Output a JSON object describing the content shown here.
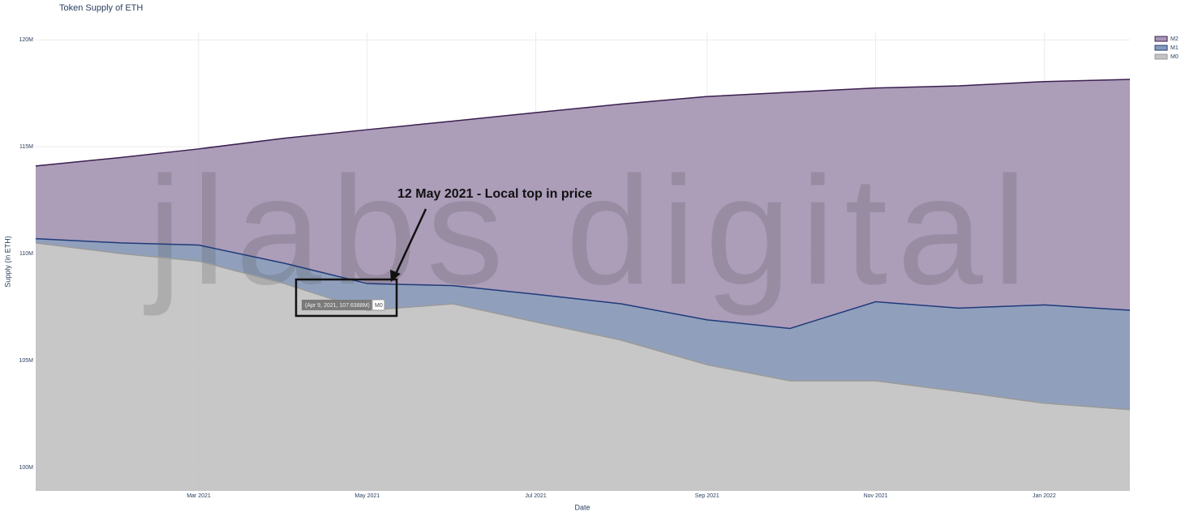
{
  "chart_data": {
    "type": "area",
    "title": "Token Supply of ETH",
    "x_label": "Date",
    "y_label": "Supply (in ETH)",
    "x": [
      "2021-01",
      "2021-02",
      "2021-03",
      "2021-04",
      "2021-05",
      "2021-06",
      "2021-07",
      "2021-08",
      "2021-09",
      "2021-10",
      "2021-11",
      "2021-12",
      "2022-01",
      "2022-02"
    ],
    "series": [
      {
        "name": "M2",
        "color": "#3b1f4f",
        "fill": "#a898b5",
        "values": [
          114100000,
          114500000,
          114900000,
          115400000,
          115800000,
          116200000,
          116600000,
          117000000,
          117350000,
          117550000,
          117750000,
          117850000,
          118050000,
          118150000
        ]
      },
      {
        "name": "M1",
        "color": "#1f3a7a",
        "fill": "#8a9bb8",
        "values": [
          110700000,
          110500000,
          110400000,
          109550000,
          108600000,
          108500000,
          108100000,
          107650000,
          106900000,
          106500000,
          107750000,
          107450000,
          107600000,
          107350000
        ]
      },
      {
        "name": "M0",
        "color": "#9a9a9a",
        "fill": "#c4c4c4",
        "values": [
          110500000,
          110000000,
          109650000,
          108600000,
          107350000,
          107650000,
          106800000,
          105950000,
          104800000,
          104050000,
          104050000,
          103550000,
          103000000,
          102700000
        ]
      }
    ],
    "xlim": [
      "2021-01",
      "2022-02"
    ],
    "xticks": [
      {
        "value": "2021-03",
        "label": "Mar 2021"
      },
      {
        "value": "2021-05",
        "label": "May 2021"
      },
      {
        "value": "2021-07",
        "label": "Jul 2021"
      },
      {
        "value": "2021-09",
        "label": "Sep 2021"
      },
      {
        "value": "2021-11",
        "label": "Nov 2021"
      },
      {
        "value": "2022-01",
        "label": "Jan 2022"
      }
    ],
    "ylim": [
      98900000,
      120350000
    ],
    "yticks": [
      {
        "value": 100000000,
        "label": "100M"
      },
      {
        "value": 105000000,
        "label": "105M"
      },
      {
        "value": 110000000,
        "label": "110M"
      },
      {
        "value": 115000000,
        "label": "115M"
      },
      {
        "value": 120000000,
        "label": "120M"
      }
    ],
    "grid": true,
    "legend": "top-right",
    "annotations": [
      "12 May 2021 - Local top in price",
      "(Apr 9, 2021, 107.6388M)",
      "M0"
    ],
    "watermark": "jlabs digital"
  }
}
